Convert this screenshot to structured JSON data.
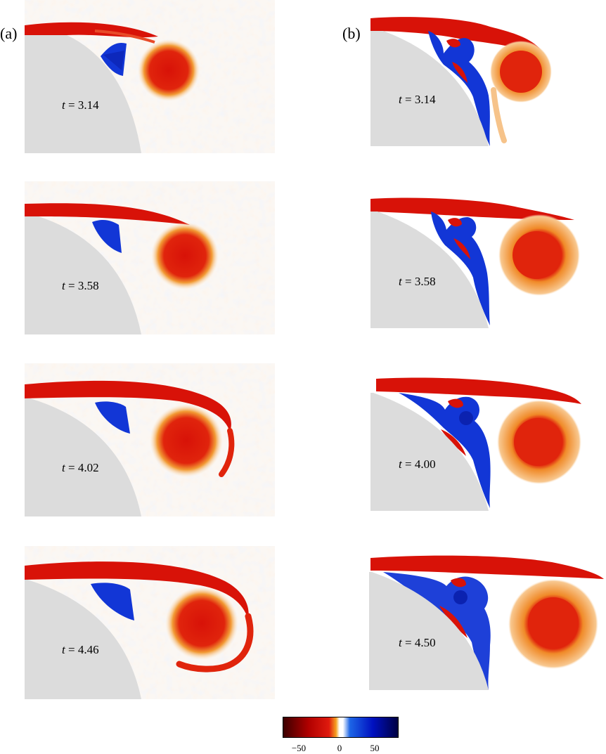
{
  "panels": {
    "a": {
      "label": "(a)",
      "times": [
        "3.14",
        "3.58",
        "4.02",
        "4.46"
      ]
    },
    "b": {
      "label": "(b)",
      "times": [
        "3.14",
        "3.58",
        "4.00",
        "4.50"
      ]
    }
  },
  "time_symbol": "t",
  "equals": "=",
  "colorbar": {
    "ticks": [
      "−50",
      "0",
      "50"
    ],
    "range": [
      -80,
      80
    ],
    "colors": [
      "#3a0000",
      "#b00000",
      "#e01a0e",
      "#f5a020",
      "#ffffff",
      "#1d66e6",
      "#0010c0",
      "#000040"
    ]
  },
  "colors": {
    "body": "#dcdcdc",
    "positive": "#d81208",
    "negative": "#1236d6",
    "halo": "#f29a34"
  }
}
